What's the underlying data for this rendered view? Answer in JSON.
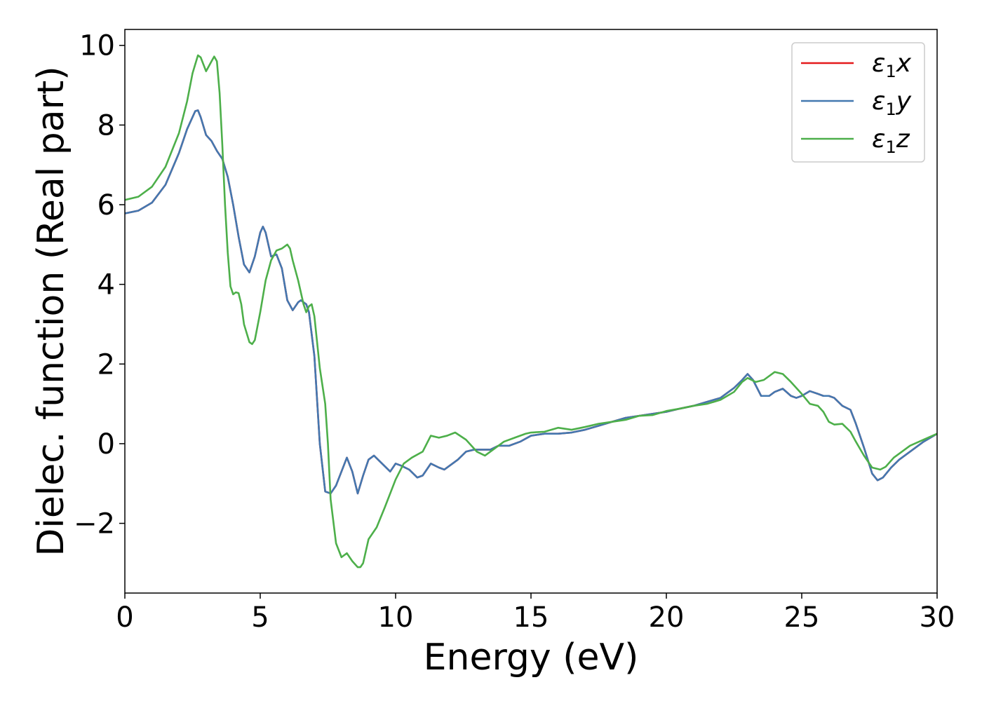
{
  "chart_data": {
    "type": "line",
    "title": "",
    "xlabel": "Energy (eV)",
    "ylabel": "Dielec. function (Real part)",
    "xlim": [
      0,
      30
    ],
    "ylim": [
      -3.75,
      10.4
    ],
    "xticks": [
      0,
      5,
      10,
      15,
      20,
      25,
      30
    ],
    "xtick_labels": [
      "0",
      "5",
      "10",
      "15",
      "20",
      "25",
      "30"
    ],
    "yticks": [
      -2,
      0,
      2,
      4,
      6,
      8,
      10
    ],
    "ytick_labels": [
      "−2",
      "0",
      "2",
      "4",
      "6",
      "8",
      "10"
    ],
    "grid": false,
    "legend_position": "top-right",
    "series": [
      {
        "name": "ε1x",
        "legend_main": "ε",
        "legend_sub": "1",
        "legend_suffix": "x",
        "color": "#e41a1c",
        "x": [
          0,
          0.5,
          1.0,
          1.5,
          2.0,
          2.3,
          2.6,
          2.7,
          2.8,
          3.0,
          3.2,
          3.4,
          3.6,
          3.8,
          4.0,
          4.2,
          4.4,
          4.6,
          4.8,
          5.0,
          5.1,
          5.2,
          5.4,
          5.6,
          5.8,
          6.0,
          6.2,
          6.4,
          6.5,
          6.7,
          6.8,
          7.0,
          7.2,
          7.4,
          7.6,
          7.8,
          8.0,
          8.2,
          8.4,
          8.6,
          8.8,
          9.0,
          9.2,
          9.5,
          9.8,
          10.0,
          10.2,
          10.5,
          10.8,
          11.0,
          11.3,
          11.6,
          11.8,
          12.0,
          12.3,
          12.6,
          12.9,
          13.2,
          13.5,
          13.8,
          14.2,
          14.6,
          15.0,
          15.5,
          16.0,
          16.5,
          17.0,
          17.5,
          18.0,
          18.5,
          19.0,
          19.5,
          20.0,
          20.5,
          21.0,
          21.5,
          22.0,
          22.5,
          22.8,
          23.0,
          23.2,
          23.5,
          23.8,
          24.0,
          24.3,
          24.6,
          24.8,
          25.0,
          25.3,
          25.6,
          25.8,
          26.0,
          26.2,
          26.5,
          26.8,
          27.0,
          27.3,
          27.6,
          27.8,
          28.0,
          28.3,
          28.6,
          29.0,
          29.5,
          30.0
        ],
        "values": [
          5.78,
          5.85,
          6.05,
          6.5,
          7.3,
          7.9,
          8.35,
          8.37,
          8.2,
          7.75,
          7.6,
          7.35,
          7.15,
          6.7,
          6.0,
          5.2,
          4.5,
          4.3,
          4.7,
          5.3,
          5.45,
          5.3,
          4.7,
          4.75,
          4.4,
          3.6,
          3.35,
          3.55,
          3.6,
          3.5,
          3.3,
          2.2,
          0.0,
          -1.2,
          -1.25,
          -1.05,
          -0.7,
          -0.35,
          -0.7,
          -1.25,
          -0.8,
          -0.4,
          -0.3,
          -0.5,
          -0.7,
          -0.5,
          -0.55,
          -0.65,
          -0.85,
          -0.8,
          -0.5,
          -0.6,
          -0.65,
          -0.55,
          -0.4,
          -0.2,
          -0.15,
          -0.15,
          -0.15,
          -0.05,
          -0.05,
          0.05,
          0.2,
          0.25,
          0.25,
          0.28,
          0.35,
          0.45,
          0.55,
          0.65,
          0.7,
          0.75,
          0.8,
          0.88,
          0.95,
          1.05,
          1.15,
          1.4,
          1.6,
          1.75,
          1.6,
          1.2,
          1.2,
          1.3,
          1.38,
          1.2,
          1.15,
          1.2,
          1.32,
          1.25,
          1.2,
          1.2,
          1.15,
          0.95,
          0.85,
          0.5,
          -0.1,
          -0.75,
          -0.92,
          -0.85,
          -0.6,
          -0.4,
          -0.2,
          0.05,
          0.25
        ]
      },
      {
        "name": "ε1y",
        "legend_main": "ε",
        "legend_sub": "1",
        "legend_suffix": "y",
        "color": "#4378b0",
        "x": [
          0,
          0.5,
          1.0,
          1.5,
          2.0,
          2.3,
          2.6,
          2.7,
          2.8,
          3.0,
          3.2,
          3.4,
          3.6,
          3.8,
          4.0,
          4.2,
          4.4,
          4.6,
          4.8,
          5.0,
          5.1,
          5.2,
          5.4,
          5.6,
          5.8,
          6.0,
          6.2,
          6.4,
          6.5,
          6.7,
          6.8,
          7.0,
          7.2,
          7.4,
          7.6,
          7.8,
          8.0,
          8.2,
          8.4,
          8.6,
          8.8,
          9.0,
          9.2,
          9.5,
          9.8,
          10.0,
          10.2,
          10.5,
          10.8,
          11.0,
          11.3,
          11.6,
          11.8,
          12.0,
          12.3,
          12.6,
          12.9,
          13.2,
          13.5,
          13.8,
          14.2,
          14.6,
          15.0,
          15.5,
          16.0,
          16.5,
          17.0,
          17.5,
          18.0,
          18.5,
          19.0,
          19.5,
          20.0,
          20.5,
          21.0,
          21.5,
          22.0,
          22.5,
          22.8,
          23.0,
          23.2,
          23.5,
          23.8,
          24.0,
          24.3,
          24.6,
          24.8,
          25.0,
          25.3,
          25.6,
          25.8,
          26.0,
          26.2,
          26.5,
          26.8,
          27.0,
          27.3,
          27.6,
          27.8,
          28.0,
          28.3,
          28.6,
          29.0,
          29.5,
          30.0
        ],
        "values": [
          5.78,
          5.85,
          6.05,
          6.5,
          7.3,
          7.9,
          8.35,
          8.37,
          8.2,
          7.75,
          7.6,
          7.35,
          7.15,
          6.7,
          6.0,
          5.2,
          4.5,
          4.3,
          4.7,
          5.3,
          5.45,
          5.3,
          4.7,
          4.75,
          4.4,
          3.6,
          3.35,
          3.55,
          3.6,
          3.5,
          3.3,
          2.2,
          0.0,
          -1.2,
          -1.25,
          -1.05,
          -0.7,
          -0.35,
          -0.7,
          -1.25,
          -0.8,
          -0.4,
          -0.3,
          -0.5,
          -0.7,
          -0.5,
          -0.55,
          -0.65,
          -0.85,
          -0.8,
          -0.5,
          -0.6,
          -0.65,
          -0.55,
          -0.4,
          -0.2,
          -0.15,
          -0.15,
          -0.15,
          -0.05,
          -0.05,
          0.05,
          0.2,
          0.25,
          0.25,
          0.28,
          0.35,
          0.45,
          0.55,
          0.65,
          0.7,
          0.75,
          0.8,
          0.88,
          0.95,
          1.05,
          1.15,
          1.4,
          1.6,
          1.75,
          1.6,
          1.2,
          1.2,
          1.3,
          1.38,
          1.2,
          1.15,
          1.2,
          1.32,
          1.25,
          1.2,
          1.2,
          1.15,
          0.95,
          0.85,
          0.5,
          -0.1,
          -0.75,
          -0.92,
          -0.85,
          -0.6,
          -0.4,
          -0.2,
          0.05,
          0.25
        ]
      },
      {
        "name": "ε1z",
        "legend_main": "ε",
        "legend_sub": "1",
        "legend_suffix": "z",
        "color": "#4daf4a",
        "x": [
          0,
          0.5,
          1.0,
          1.5,
          2.0,
          2.3,
          2.5,
          2.7,
          2.8,
          3.0,
          3.2,
          3.3,
          3.4,
          3.5,
          3.6,
          3.7,
          3.8,
          3.9,
          4.0,
          4.1,
          4.2,
          4.3,
          4.4,
          4.6,
          4.7,
          4.8,
          5.0,
          5.2,
          5.4,
          5.6,
          5.8,
          6.0,
          6.1,
          6.2,
          6.4,
          6.6,
          6.7,
          6.8,
          6.9,
          7.0,
          7.2,
          7.4,
          7.5,
          7.6,
          7.8,
          8.0,
          8.2,
          8.4,
          8.6,
          8.7,
          8.8,
          9.0,
          9.3,
          9.6,
          10.0,
          10.3,
          10.6,
          11.0,
          11.3,
          11.6,
          11.9,
          12.2,
          12.6,
          13.0,
          13.3,
          13.6,
          14.0,
          14.4,
          14.8,
          15.0,
          15.5,
          16.0,
          16.5,
          17.0,
          17.5,
          18.0,
          18.5,
          19.0,
          19.5,
          20.0,
          20.5,
          21.0,
          21.5,
          22.0,
          22.5,
          22.8,
          23.0,
          23.3,
          23.6,
          24.0,
          24.3,
          24.6,
          25.0,
          25.3,
          25.6,
          25.8,
          26.0,
          26.2,
          26.5,
          26.8,
          27.0,
          27.3,
          27.6,
          27.9,
          28.1,
          28.4,
          28.7,
          29.0,
          29.5,
          30.0
        ],
        "values": [
          6.12,
          6.2,
          6.45,
          6.95,
          7.8,
          8.6,
          9.3,
          9.75,
          9.7,
          9.35,
          9.6,
          9.72,
          9.6,
          8.8,
          7.5,
          6.0,
          4.8,
          3.95,
          3.75,
          3.8,
          3.78,
          3.5,
          3.0,
          2.55,
          2.5,
          2.6,
          3.3,
          4.1,
          4.6,
          4.85,
          4.9,
          5.0,
          4.9,
          4.6,
          4.1,
          3.5,
          3.3,
          3.45,
          3.5,
          3.2,
          1.9,
          1.0,
          0.0,
          -1.4,
          -2.5,
          -2.85,
          -2.75,
          -2.95,
          -3.1,
          -3.1,
          -3.0,
          -2.4,
          -2.1,
          -1.6,
          -0.9,
          -0.5,
          -0.35,
          -0.2,
          0.2,
          0.15,
          0.2,
          0.28,
          0.1,
          -0.2,
          -0.3,
          -0.15,
          0.05,
          0.15,
          0.25,
          0.28,
          0.3,
          0.4,
          0.35,
          0.42,
          0.5,
          0.55,
          0.6,
          0.7,
          0.72,
          0.82,
          0.88,
          0.95,
          1.0,
          1.1,
          1.3,
          1.55,
          1.65,
          1.55,
          1.6,
          1.8,
          1.75,
          1.55,
          1.25,
          1.0,
          0.95,
          0.8,
          0.55,
          0.48,
          0.5,
          0.3,
          0.05,
          -0.3,
          -0.6,
          -0.65,
          -0.58,
          -0.35,
          -0.2,
          -0.05,
          0.1,
          0.25
        ]
      }
    ]
  }
}
